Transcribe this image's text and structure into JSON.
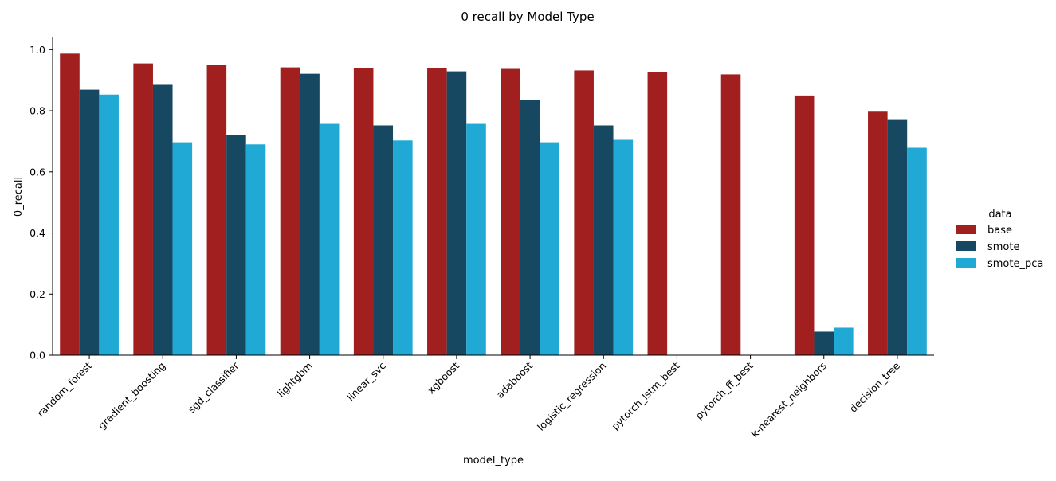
{
  "chart_data": {
    "type": "bar",
    "title": "0 recall by Model Type",
    "xlabel": "model_type",
    "ylabel": "0_recall",
    "ylim": [
      0,
      1.04
    ],
    "yticks": [
      "0.0",
      "0.2",
      "0.4",
      "0.6",
      "0.8",
      "1.0"
    ],
    "grid": false,
    "legend_position": "right",
    "legend_title": "data",
    "categories": [
      "random_forest",
      "gradient_boosting",
      "sgd_classifier",
      "lightgbm",
      "linear_svc",
      "xgboost",
      "adaboost",
      "logistic_regression",
      "pytorch_lstm_best",
      "pytorch_ff_best",
      "k-nearest_neighbors",
      "decision_tree"
    ],
    "series": [
      {
        "name": "base",
        "color": "#a11f1f",
        "values": [
          0.987,
          0.955,
          0.95,
          0.942,
          0.94,
          0.94,
          0.937,
          0.932,
          0.927,
          0.919,
          0.85,
          0.797
        ]
      },
      {
        "name": "smote",
        "color": "#164861",
        "values": [
          0.869,
          0.885,
          0.72,
          0.921,
          0.752,
          0.929,
          0.835,
          0.752,
          null,
          null,
          0.077,
          0.77
        ]
      },
      {
        "name": "smote_pca",
        "color": "#1fa9d4",
        "values": [
          0.853,
          0.697,
          0.69,
          0.757,
          0.703,
          0.757,
          0.697,
          0.705,
          null,
          null,
          0.09,
          0.679
        ]
      }
    ]
  }
}
